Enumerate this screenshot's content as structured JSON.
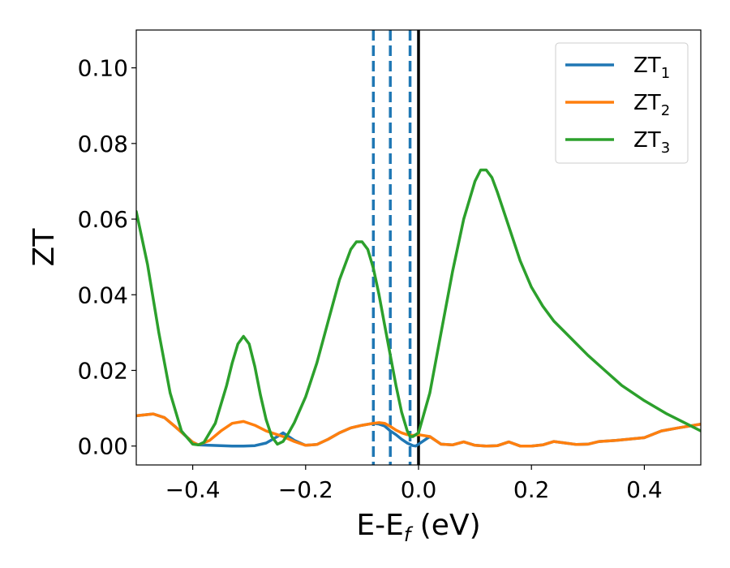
{
  "chart_data": {
    "type": "line",
    "title": "",
    "xlabel": {
      "base": "E-E",
      "sub": "f",
      "unit": " (eV)"
    },
    "ylabel": "ZT",
    "xlim": [
      -0.5,
      0.5
    ],
    "ylim": [
      -0.005,
      0.11
    ],
    "x_ticks": [
      -0.4,
      -0.2,
      0.0,
      0.2,
      0.4
    ],
    "x_tick_labels": [
      "−0.4",
      "−0.2",
      "0.0",
      "0.2",
      "0.4"
    ],
    "y_ticks": [
      0.0,
      0.02,
      0.04,
      0.06,
      0.08,
      0.1
    ],
    "y_tick_labels": [
      "0.00",
      "0.02",
      "0.04",
      "0.06",
      "0.08",
      "0.10"
    ],
    "grid": false,
    "legend": {
      "placement": "top-right"
    },
    "series": [
      {
        "name": "ZT",
        "sub": "1",
        "color": "#1f77b4",
        "x": [
          -0.5,
          -0.47,
          -0.45,
          -0.43,
          -0.4,
          -0.39,
          -0.37,
          -0.35,
          -0.33,
          -0.31,
          -0.29,
          -0.27,
          -0.25,
          -0.24,
          -0.22,
          -0.2,
          -0.18,
          -0.16,
          -0.14,
          -0.12,
          -0.1,
          -0.08,
          -0.07,
          -0.06,
          -0.05,
          -0.04,
          -0.03,
          -0.02,
          -0.01,
          -0.005,
          0.0,
          0.02,
          0.04,
          0.06,
          0.08,
          0.1,
          0.12,
          0.14,
          0.16,
          0.18,
          0.2,
          0.22,
          0.24,
          0.26,
          0.28,
          0.3,
          0.32,
          0.35,
          0.4,
          0.43,
          0.46,
          0.5
        ],
        "y": [
          0.008,
          0.0085,
          0.0075,
          0.005,
          0.001,
          0.0003,
          0.0002,
          0.0001,
          0.0,
          0.0,
          0.0001,
          0.0008,
          0.0025,
          0.0035,
          0.0015,
          0.0002,
          0.0004,
          0.0018,
          0.0035,
          0.0048,
          0.0055,
          0.006,
          0.0058,
          0.0053,
          0.004,
          0.003,
          0.0018,
          0.0008,
          0.0001,
          0.0,
          0.0005,
          0.0025,
          0.0005,
          0.0003,
          0.0011,
          0.0002,
          0.0,
          0.0001,
          0.0011,
          0.0,
          0.0,
          0.0003,
          0.0012,
          0.0008,
          0.0004,
          0.0005,
          0.0012,
          0.0015,
          0.0022,
          0.004,
          0.0048,
          0.0058
        ]
      },
      {
        "name": "ZT",
        "sub": "2",
        "color": "#ff7f0e",
        "x": [
          -0.5,
          -0.47,
          -0.45,
          -0.43,
          -0.4,
          -0.39,
          -0.37,
          -0.35,
          -0.33,
          -0.31,
          -0.29,
          -0.27,
          -0.25,
          -0.24,
          -0.22,
          -0.2,
          -0.18,
          -0.16,
          -0.14,
          -0.12,
          -0.1,
          -0.08,
          -0.07,
          -0.06,
          -0.05,
          -0.04,
          -0.03,
          -0.02,
          -0.01,
          0.0,
          0.02,
          0.04,
          0.06,
          0.08,
          0.1,
          0.12,
          0.14,
          0.16,
          0.18,
          0.2,
          0.22,
          0.24,
          0.26,
          0.28,
          0.3,
          0.32,
          0.35,
          0.4,
          0.43,
          0.46,
          0.5
        ],
        "y": [
          0.008,
          0.0085,
          0.0075,
          0.005,
          0.001,
          0.0003,
          0.0015,
          0.004,
          0.006,
          0.0065,
          0.0055,
          0.004,
          0.003,
          0.0025,
          0.0012,
          0.0002,
          0.0004,
          0.0018,
          0.0035,
          0.0048,
          0.0055,
          0.006,
          0.0062,
          0.006,
          0.0052,
          0.0042,
          0.0035,
          0.003,
          0.0028,
          0.003,
          0.0025,
          0.0005,
          0.0003,
          0.0011,
          0.0002,
          0.0,
          0.0001,
          0.0011,
          0.0,
          0.0,
          0.0003,
          0.0012,
          0.0008,
          0.0004,
          0.0005,
          0.0012,
          0.0015,
          0.0022,
          0.004,
          0.0048,
          0.0058
        ]
      },
      {
        "name": "ZT",
        "sub": "3",
        "color": "#2ca02c",
        "x": [
          -0.5,
          -0.48,
          -0.46,
          -0.44,
          -0.42,
          -0.4,
          -0.39,
          -0.38,
          -0.36,
          -0.34,
          -0.33,
          -0.32,
          -0.31,
          -0.3,
          -0.29,
          -0.28,
          -0.27,
          -0.26,
          -0.25,
          -0.24,
          -0.23,
          -0.22,
          -0.2,
          -0.18,
          -0.16,
          -0.14,
          -0.12,
          -0.11,
          -0.1,
          -0.09,
          -0.08,
          -0.07,
          -0.06,
          -0.05,
          -0.04,
          -0.03,
          -0.02,
          -0.015,
          -0.01,
          0.0,
          0.02,
          0.04,
          0.06,
          0.08,
          0.1,
          0.11,
          0.12,
          0.13,
          0.14,
          0.16,
          0.18,
          0.2,
          0.22,
          0.24,
          0.26,
          0.28,
          0.3,
          0.33,
          0.36,
          0.4,
          0.44,
          0.48,
          0.5
        ],
        "y": [
          0.062,
          0.048,
          0.03,
          0.014,
          0.004,
          0.0005,
          0.0003,
          0.001,
          0.006,
          0.016,
          0.022,
          0.027,
          0.029,
          0.027,
          0.021,
          0.0135,
          0.007,
          0.0025,
          0.0005,
          0.0012,
          0.0035,
          0.0062,
          0.013,
          0.022,
          0.033,
          0.044,
          0.052,
          0.054,
          0.054,
          0.052,
          0.047,
          0.04,
          0.032,
          0.024,
          0.016,
          0.009,
          0.004,
          0.0025,
          0.0025,
          0.0035,
          0.014,
          0.03,
          0.046,
          0.06,
          0.07,
          0.073,
          0.073,
          0.071,
          0.067,
          0.058,
          0.049,
          0.042,
          0.037,
          0.033,
          0.03,
          0.027,
          0.024,
          0.02,
          0.016,
          0.012,
          0.0085,
          0.0055,
          0.004
        ]
      }
    ],
    "vlines": [
      {
        "x": -0.08,
        "style": "dashed",
        "color": "#1f77b4"
      },
      {
        "x": -0.05,
        "style": "dashed",
        "color": "#1f77b4"
      },
      {
        "x": -0.015,
        "style": "dashed",
        "color": "#1f77b4"
      },
      {
        "x": 0.0,
        "style": "solid",
        "color": "#000000"
      }
    ]
  }
}
